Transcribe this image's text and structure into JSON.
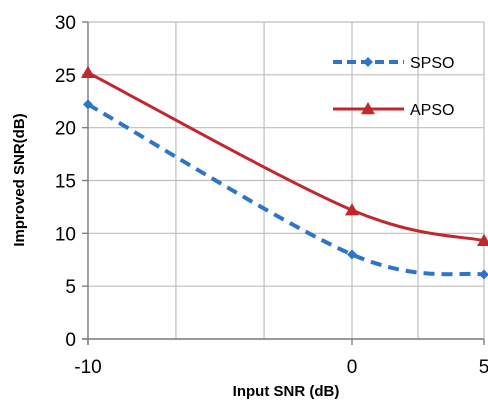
{
  "chart_data": {
    "type": "line",
    "title": "",
    "xlabel": "Input SNR (dB)",
    "ylabel": "Improved SNR(dB)",
    "xlim": [
      -10,
      5
    ],
    "ylim": [
      0,
      30
    ],
    "xticks": [
      "-10",
      "0",
      "5"
    ],
    "yticks": [
      "0",
      "5",
      "10",
      "15",
      "20",
      "25",
      "30"
    ],
    "grid": true,
    "legend_position": "right",
    "series": [
      {
        "name": "SPSO",
        "x": [
          -10,
          0,
          5
        ],
        "y": [
          22.2,
          8.0,
          6.1
        ],
        "color": "#2E75C8",
        "marker": "diamond",
        "dash": "dashed"
      },
      {
        "name": "APSO",
        "x": [
          -10,
          0,
          5
        ],
        "y": [
          25.2,
          12.2,
          9.3
        ],
        "color": "#C0282D",
        "marker": "triangle",
        "dash": "solid"
      }
    ]
  }
}
